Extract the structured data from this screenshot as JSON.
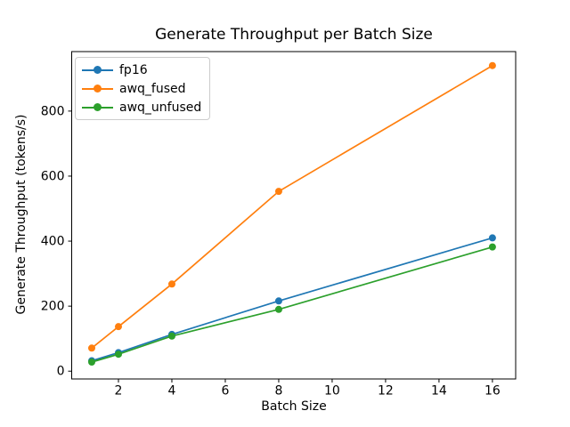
{
  "figure": {
    "background_color": "#ffffff",
    "text_color": "#000000",
    "spine_color": "#000000",
    "legend_border_color": "#cccccc"
  },
  "chart_data": {
    "type": "line",
    "title": "Generate Throughput per Batch Size",
    "xlabel": "Batch Size",
    "ylabel": "Generate Throughput (tokens/s)",
    "x": [
      1,
      2,
      4,
      8,
      16
    ],
    "series": [
      {
        "name": "fp16",
        "color": "#1f77b4",
        "values": [
          32,
          57,
          113,
          216,
          410
        ]
      },
      {
        "name": "awq_fused",
        "color": "#ff7f0e",
        "values": [
          71,
          137,
          268,
          553,
          940
        ]
      },
      {
        "name": "awq_unfused",
        "color": "#2ca02c",
        "values": [
          28,
          52,
          108,
          190,
          382
        ]
      }
    ],
    "xticks": [
      2,
      4,
      6,
      8,
      10,
      12,
      14,
      16
    ],
    "yticks": [
      0,
      200,
      400,
      600,
      800
    ],
    "xlim": [
      0.25,
      16.87
    ],
    "ylim": [
      -24,
      983
    ],
    "grid": false,
    "marker": "o",
    "legend_position": "upper left"
  }
}
